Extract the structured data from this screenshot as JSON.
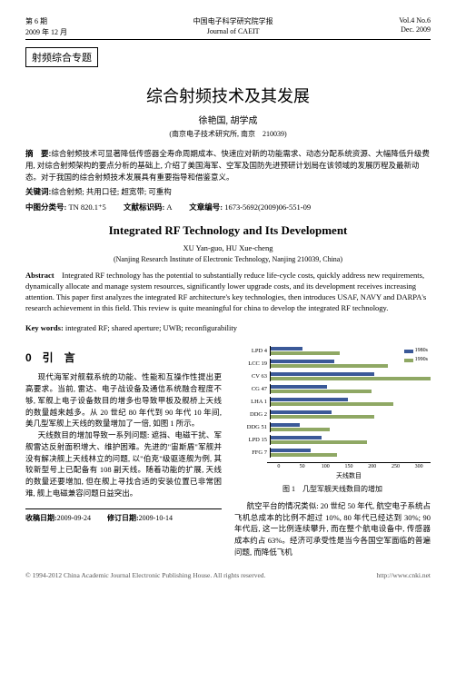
{
  "header": {
    "left1": "第 6 期",
    "left2": "2009 年 12 月",
    "center1": "中国电子科学研究院学报",
    "center2": "Journal of CAEIT",
    "right1": "Vol.4 No.6",
    "right2": "Dec. 2009"
  },
  "tag": "射频综合专题",
  "title_cn": "综合射频技术及其发展",
  "authors_cn": "徐艳国, 胡学成",
  "affil_cn": "(南京电子技术研究所, 南京　210039)",
  "abstract_cn_label": "摘　要:",
  "abstract_cn": "综合射频技术可显著降低传感器全寿命周期成本、快速应对新的功能需求、动态分配系统资源、大幅降低升级费用, 对综合射频架构的要点分析的基础上, 介绍了美国海军、空军及国防先进预研计划局在该领域的发展历程及最新动态。对于我国的综合射频技术发展具有重要指导和借鉴意义。",
  "keywords_cn_label": "关键词:",
  "keywords_cn": "综合射频; 共用口径; 超宽带; 可重构",
  "clc_label": "中图分类号:",
  "clc": "TN 820.1⁺5",
  "doc_code_label": "文献标识码:",
  "doc_code": "A",
  "article_no_label": "文章编号:",
  "article_no": "1673-5692(2009)06-551-09",
  "title_en": "Integrated RF Technology and Its Development",
  "authors_en": "XU Yan-guo, HU Xue-cheng",
  "affil_en": "(Nanjing Research Institute of Electronic Technology, Nanjing 210039, China)",
  "abstract_en_label": "Abstract",
  "abstract_en": "Integrated RF technology has the potential to substantially reduce life-cycle costs, quickly address new requirements, dynamically allocate and manage system resources, significantly lower upgrade costs, and its development receives increasing attention. This paper first analyzes the integrated RF architecture's key technologies, then introduces USAF, NAVY and DARPA's research achievement in this field. This review is quite meaningful for china to develop the integrated RF technology.",
  "keywords_en_label": "Key words:",
  "keywords_en": "integrated RF; shared aperture; UWB; reconfigurability",
  "sec0": "0　引　言",
  "col_left": {
    "p1": "现代海军对舰载系统的功能、性能和互操作性提出更高要求。当前, 雷达、电子战设备及通信系统融合程度不够, 军舰上电子设备数目的增多也导致甲板及舰桥上天线的数量越来越多。从 20 世纪 80 年代到 90 年代 10 年间, 美几型军舰上天线的数量增加了一倍, 如图 1 所示。",
    "p2": "天线数目的增加导致一系列问题: 遮挡、电磁干扰、军舰雷达反射面积增大、维护困难。先进的\"宙斯盾\"军舰并没有解决舰上天线林立的问题, 以\"伯克\"级驱逐舰为例, 其较新型号上已配备有 108 副天线。随着功能的扩展, 天线的数量还要增加, 但在舰上寻找合适的安装位置已非常困难, 舰上电磁兼容问题日益突出。"
  },
  "col_right": {
    "p1": "航空平台的情况类似: 20 世纪 50 年代, 航空电子系统占飞机总成本的比例不超过 10%, 80 年代已经达到 30%; 90 年代后, 这一比例连续攀升, 而在整个航电设备中, 传感器成本约占 63%。经济可承受性是当今各国空军面临的普遍问题, 而降低飞机"
  },
  "chart": {
    "caption": "图 1　几型军舰天线数目的增加",
    "xlabel": "天线数目",
    "categories": [
      "LPD 4",
      "LCC 19",
      "CV 63",
      "CG 47",
      "LHA 1",
      "DDG 2",
      "DDG 51",
      "LPD 15",
      "FFG 7"
    ],
    "series": [
      {
        "name": "1980s",
        "color": "#3b5998",
        "values": [
          60,
          120,
          195,
          105,
          145,
          115,
          55,
          95,
          75
        ]
      },
      {
        "name": "1990s",
        "color": "#8fa864",
        "values": [
          130,
          220,
          300,
          190,
          230,
          195,
          110,
          180,
          125
        ]
      }
    ],
    "xmax": 300,
    "xticks": [
      "0",
      "50",
      "100",
      "150",
      "200",
      "250",
      "300"
    ],
    "legend_pos": "top-right"
  },
  "dates": {
    "recv_label": "收稿日期:",
    "recv": "2009-09-24",
    "rev_label": "修订日期:",
    "rev": "2009-10-14"
  },
  "copyright": {
    "left": "© 1994-2012 China Academic Journal Electronic Publishing House. All rights reserved.",
    "right": "http://www.cnki.net"
  }
}
